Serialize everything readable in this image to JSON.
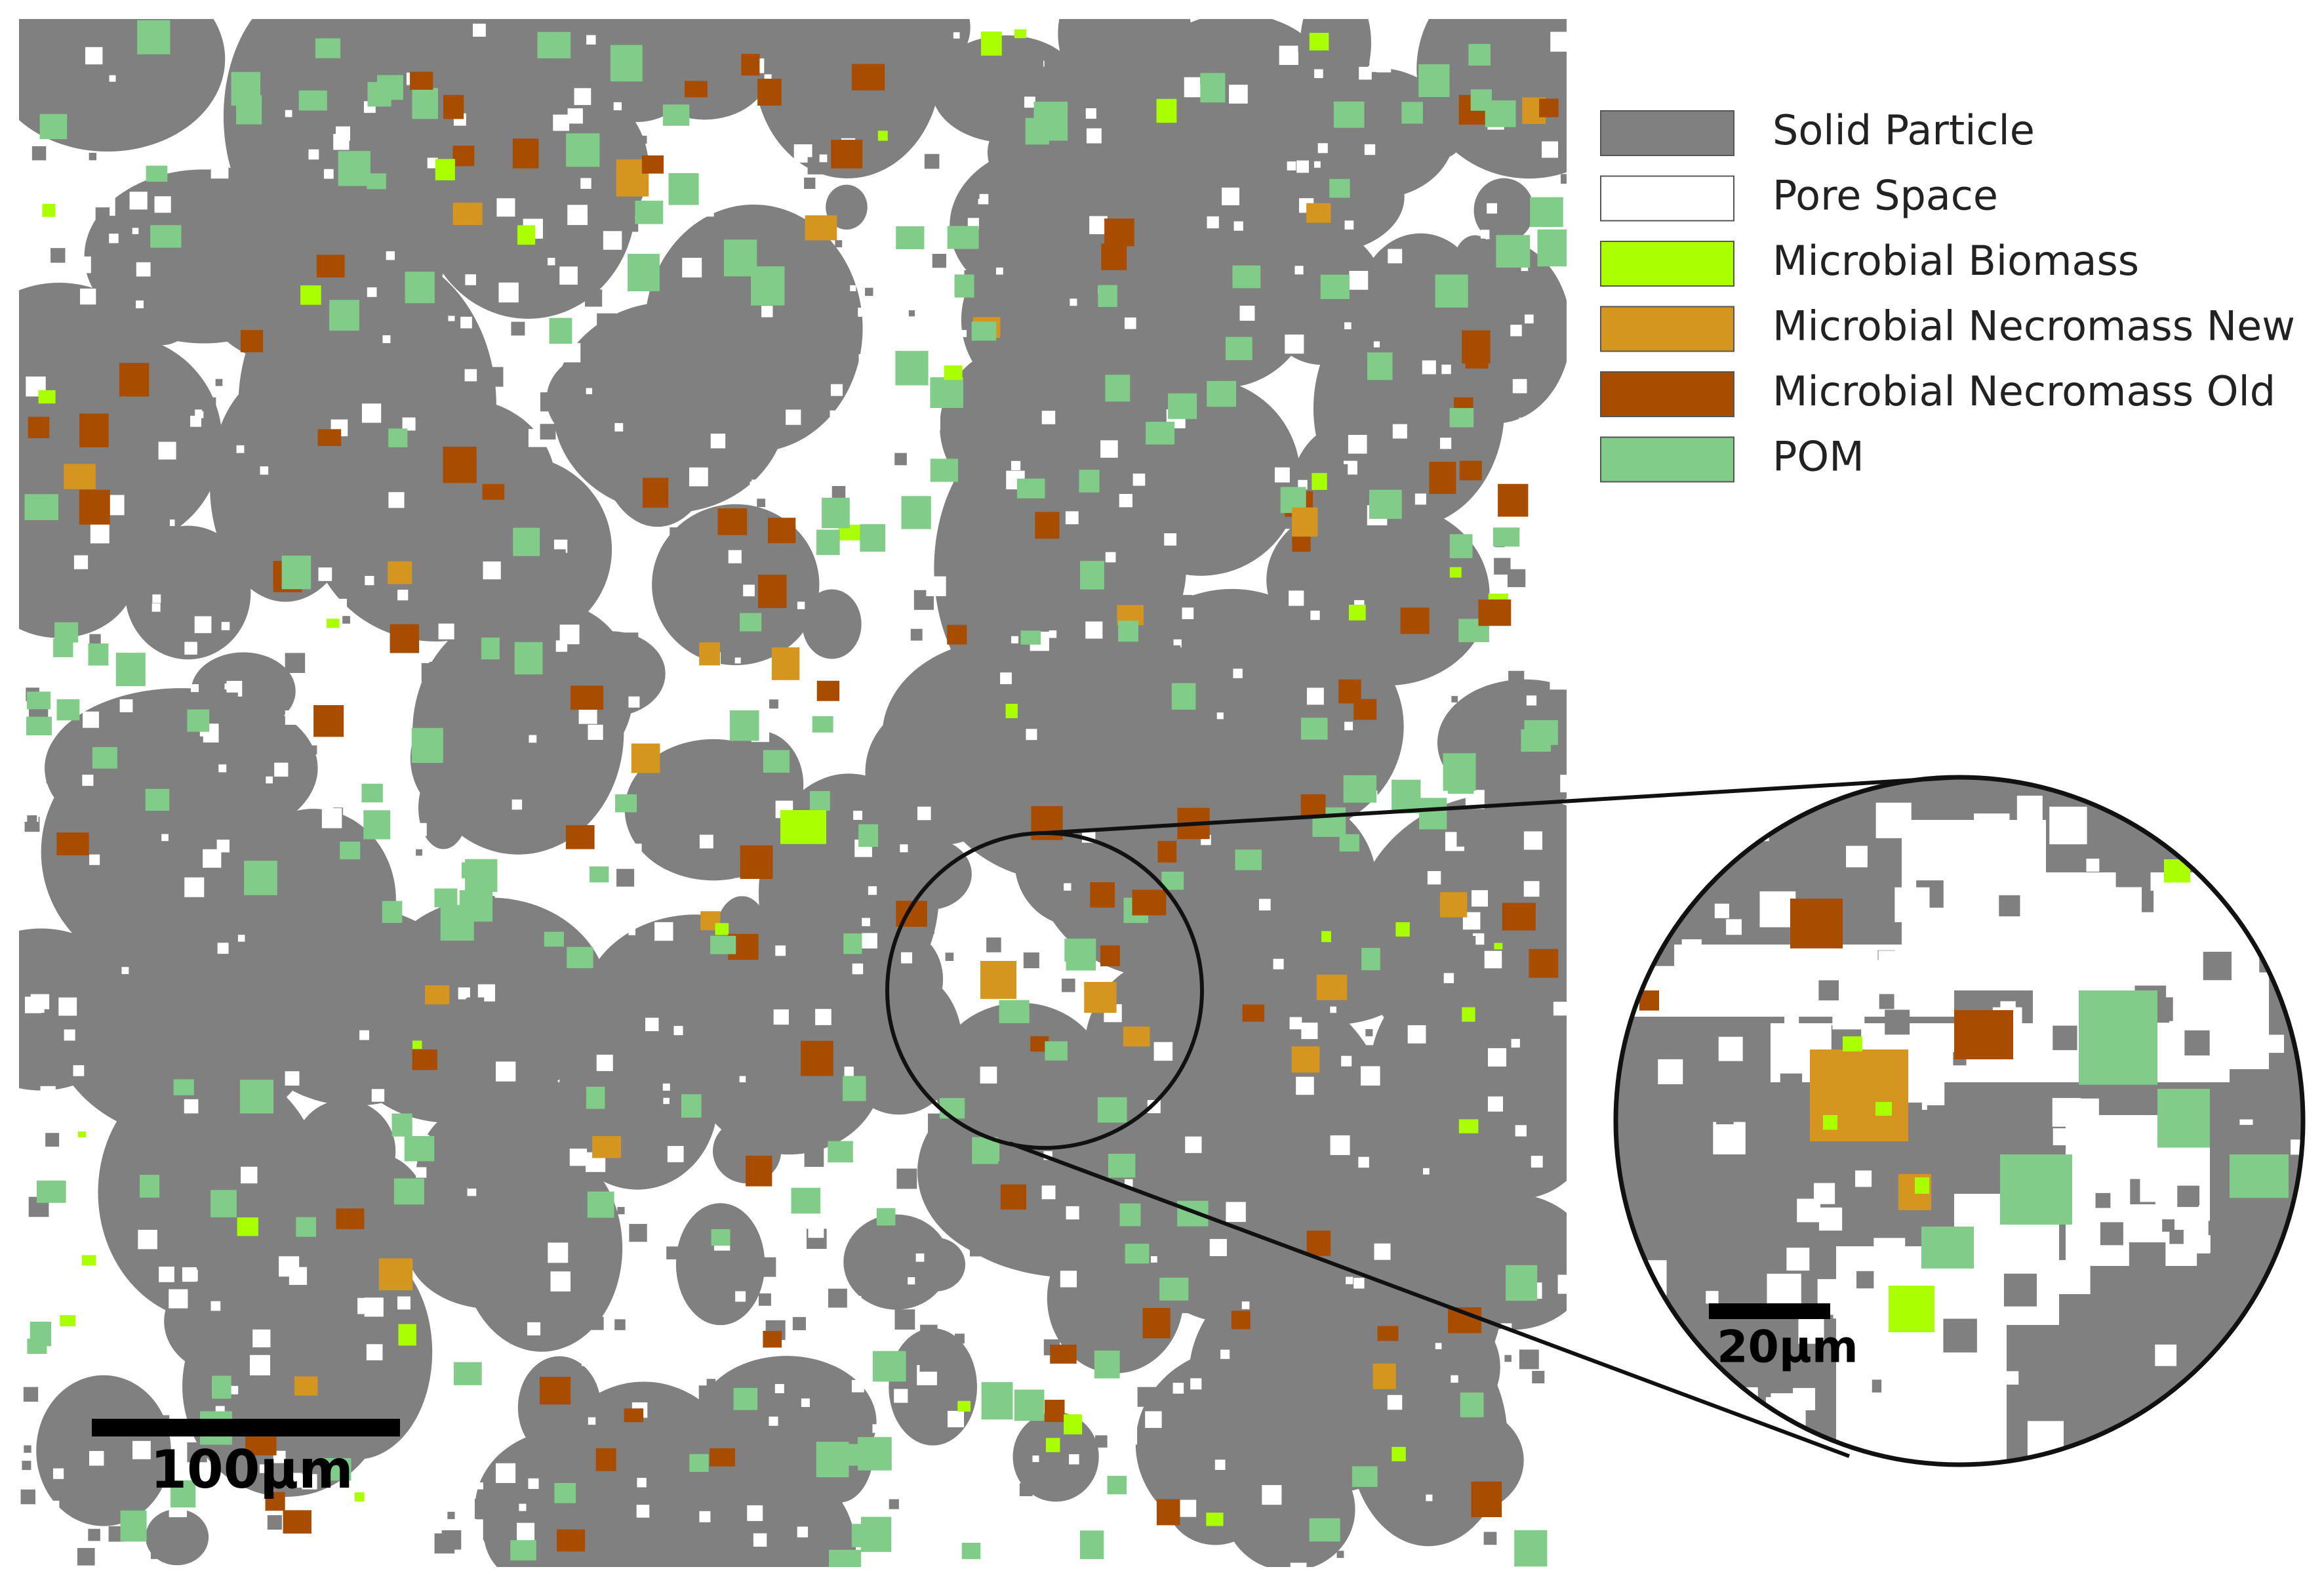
{
  "legend": {
    "items": [
      {
        "label": "Solid Particle",
        "color": "#808080"
      },
      {
        "label": "Pore Space",
        "color": "#ffffff"
      },
      {
        "label": "Microbial Biomass",
        "color": "#aaff00"
      },
      {
        "label": "Microbial Necromass New",
        "color": "#d4961e"
      },
      {
        "label": "Microbial Necromass Old",
        "color": "#a84c00"
      },
      {
        "label": "POM",
        "color": "#80cc88"
      }
    ]
  },
  "scale_bars": {
    "main": "100µm",
    "inset": "20µm"
  }
}
